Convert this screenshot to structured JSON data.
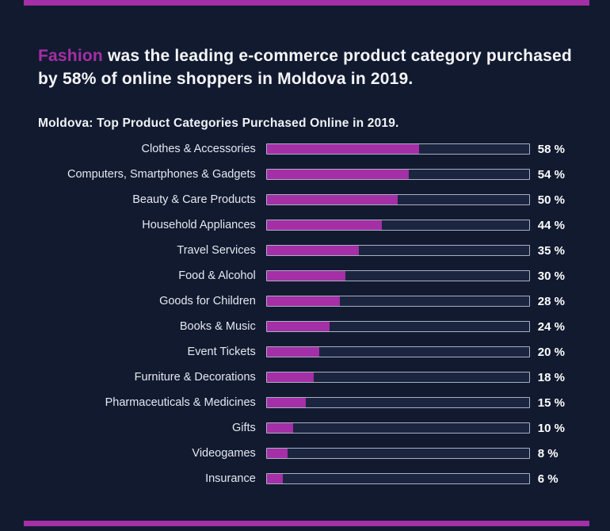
{
  "colors": {
    "background": "#121a30",
    "accent": "#a42fa6",
    "track_background": "#1c2540",
    "track_border": "#cbd3e2",
    "label_text": "#e4e8ef",
    "headline_text": "#f5f6f8"
  },
  "headline": {
    "highlight": "Fashion",
    "rest": " was the leading e-commerce product category purchased by 58% of online shoppers in Moldova in 2019."
  },
  "chart_data": {
    "type": "bar",
    "orientation": "horizontal",
    "title": "Moldova: Top Product Categories Purchased Online in 2019.",
    "categories": [
      "Clothes & Accessories",
      "Computers, Smartphones & Gadgets",
      "Beauty & Care Products",
      "Household Appliances",
      "Travel Services",
      "Food & Alcohol",
      "Goods for Children",
      "Books & Music",
      "Event Tickets",
      "Furniture & Decorations",
      "Pharmaceuticals & Medicines",
      "Gifts",
      "Videogames",
      "Insurance"
    ],
    "values": [
      58,
      54,
      50,
      44,
      35,
      30,
      28,
      24,
      20,
      18,
      15,
      10,
      8,
      6
    ],
    "value_suffix": " %",
    "xlim": [
      0,
      100
    ],
    "grid": false,
    "legend": false,
    "bar_color": "#a42fa6"
  }
}
